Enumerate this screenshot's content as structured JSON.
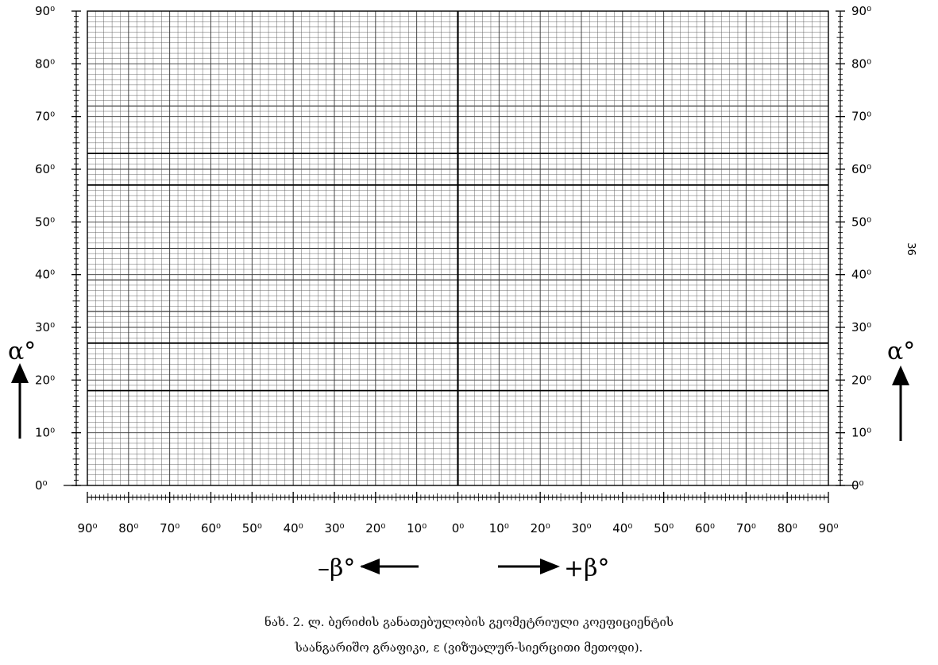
{
  "chart_data": {
    "type": "table",
    "description_kind": "blank coordinate grid",
    "y_axis": {
      "label": "α°",
      "range": [
        0,
        90
      ],
      "ticks": [
        "0⁰",
        "10⁰",
        "20⁰",
        "30⁰",
        "40⁰",
        "50⁰",
        "60⁰",
        "70⁰",
        "80⁰",
        "90⁰"
      ],
      "minor_step": 1,
      "bold_lines": [
        18,
        27,
        57,
        63
      ],
      "medium_lines": [
        33,
        39,
        45,
        72
      ]
    },
    "x_axis": {
      "label_left": "–β°",
      "label_right": "+β°",
      "range": [
        -90,
        90
      ],
      "ticks": [
        "90⁰",
        "80⁰",
        "70⁰",
        "60⁰",
        "50⁰",
        "40⁰",
        "30⁰",
        "20⁰",
        "10⁰",
        "0⁰",
        "10⁰",
        "20⁰",
        "30⁰",
        "40⁰",
        "50⁰",
        "60⁰",
        "70⁰",
        "80⁰",
        "90⁰"
      ],
      "minor_step": 2
    },
    "grid": true
  },
  "caption": {
    "line1": "ნახ. 2. ლ. ბერიძის განათებულობის გეომეტრიული კოეფიციენტის",
    "line2": "საანგარიშო გრაფიკი, ε  (ვიზუალურ-სიერცითი მეთოდი)."
  },
  "page_number": "36",
  "colors": {
    "grid": "#000000",
    "bold": "#000000",
    "background": "#ffffff"
  }
}
